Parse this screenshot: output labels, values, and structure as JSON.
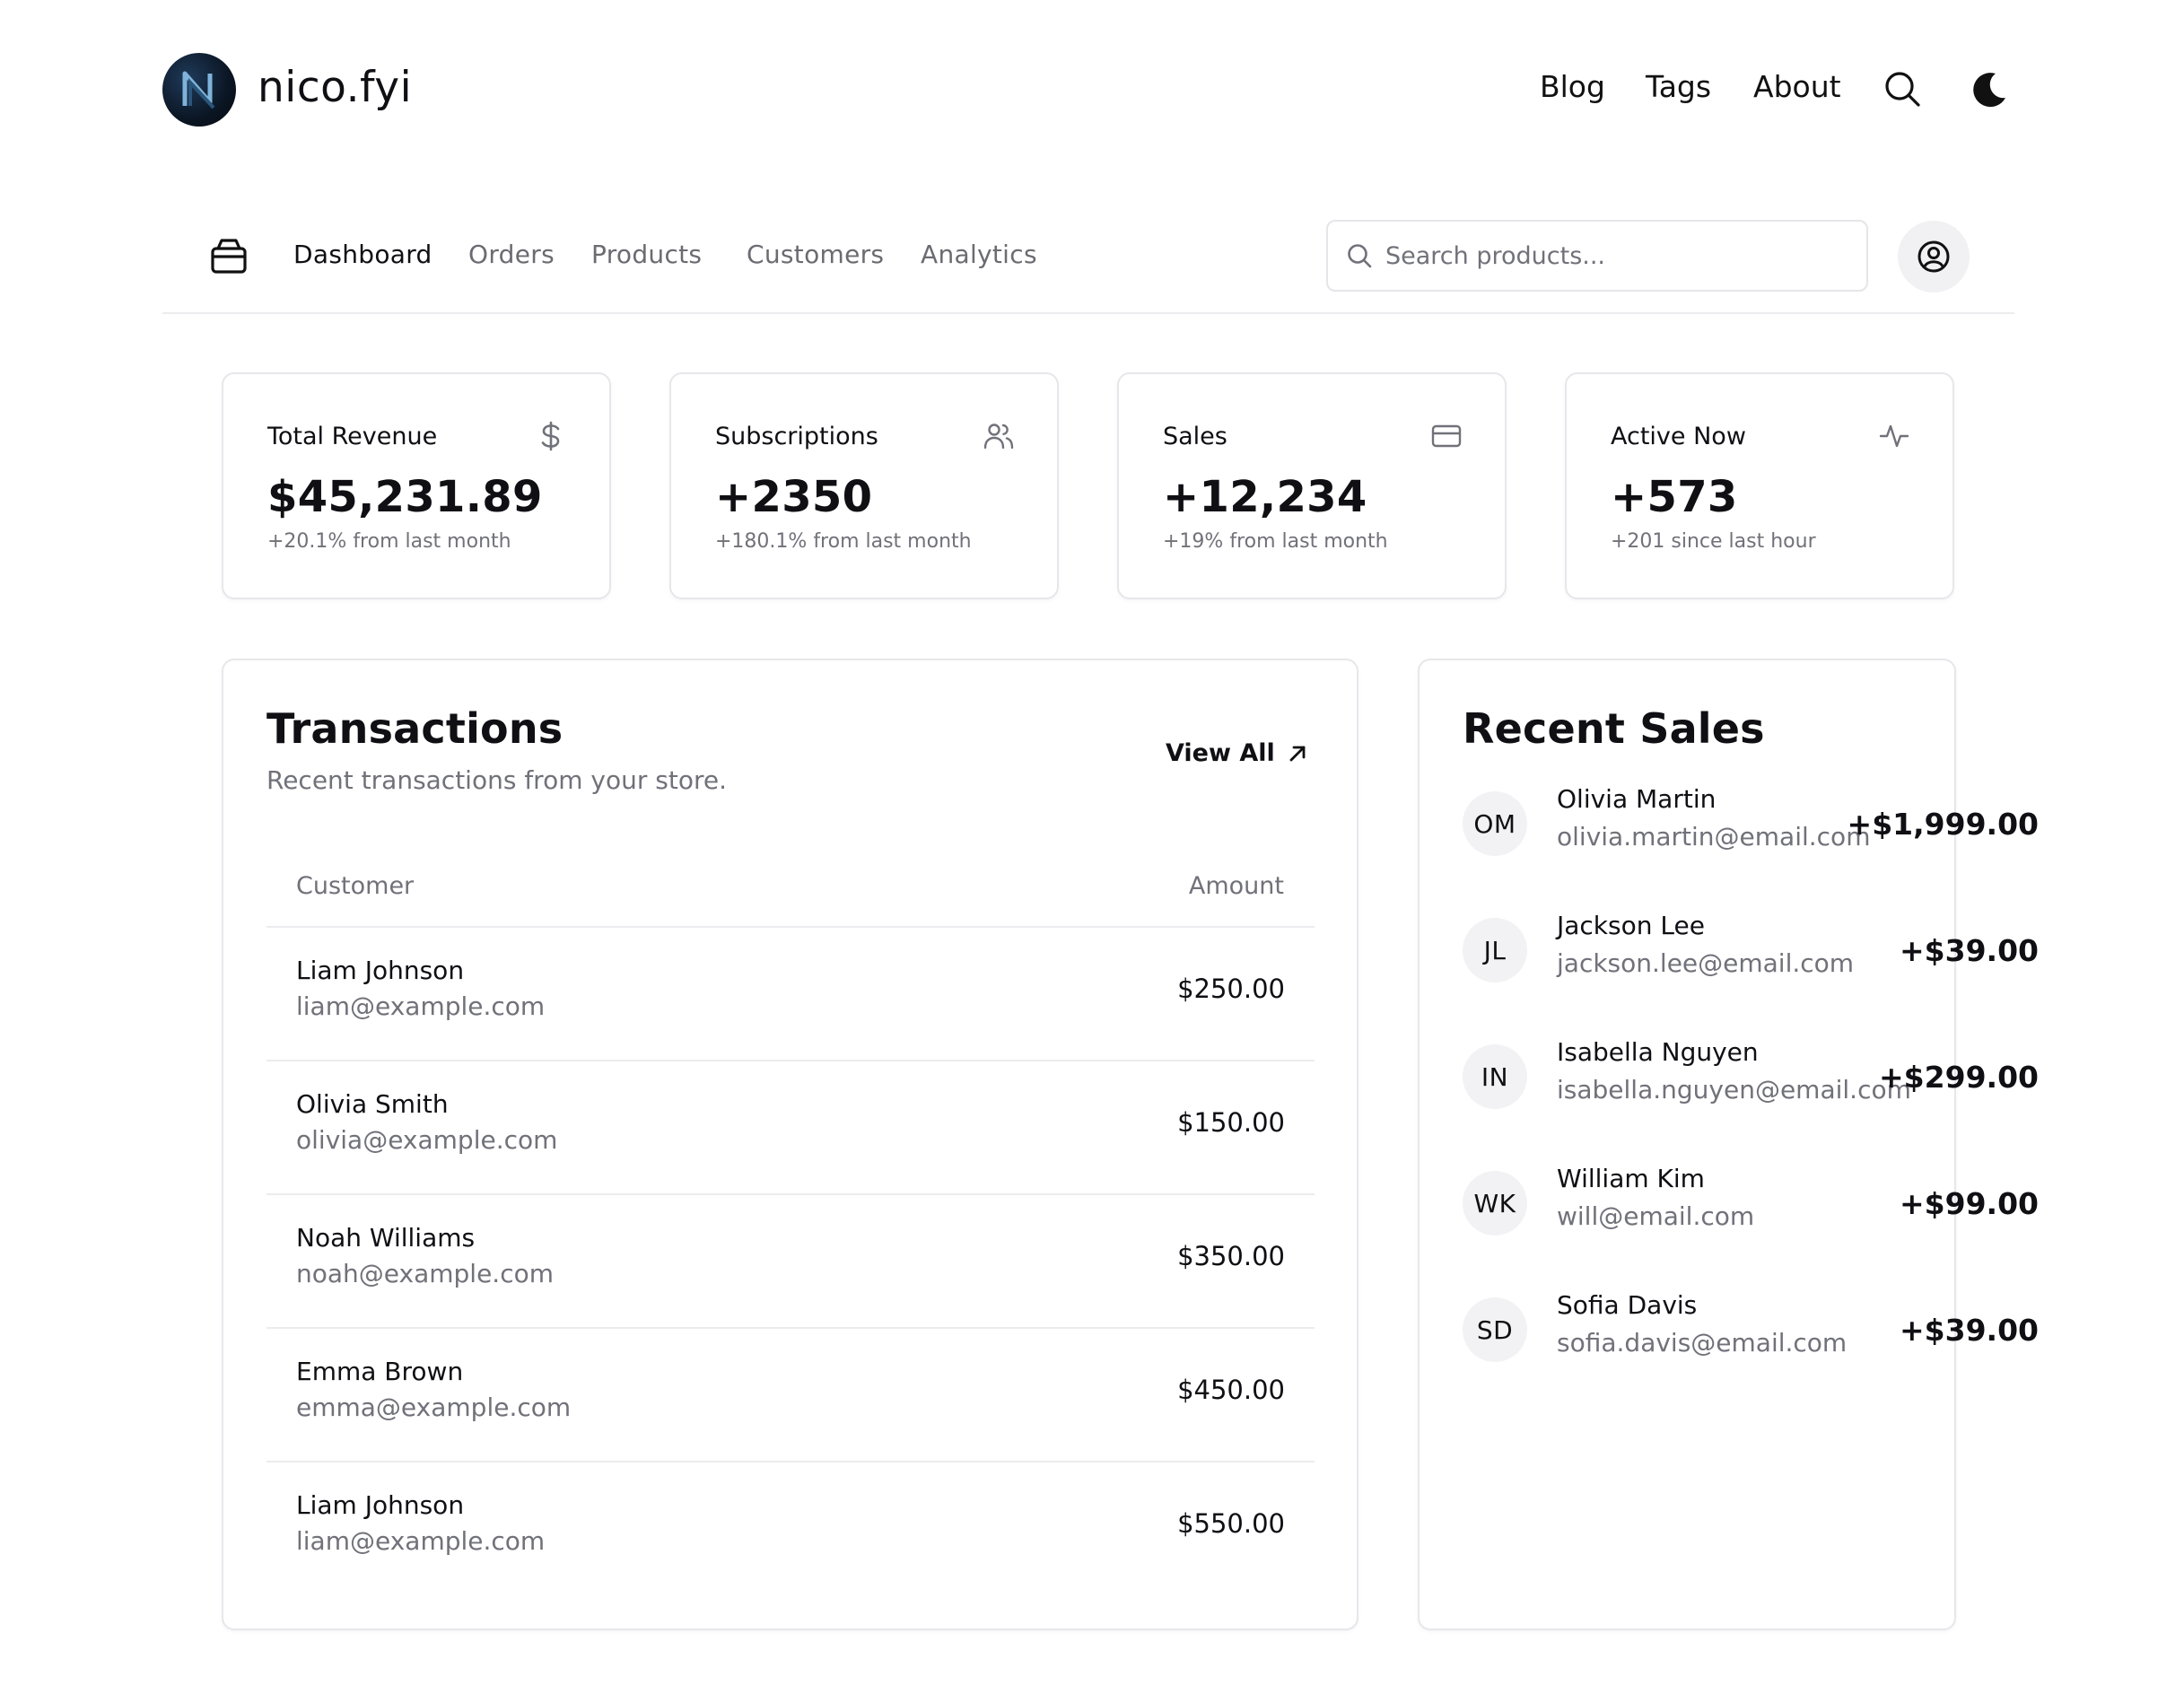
{
  "site": {
    "brand": "nico.fyi",
    "nav": [
      "Blog",
      "Tags",
      "About"
    ]
  },
  "app_nav": {
    "items": [
      "Dashboard",
      "Orders",
      "Products",
      "Customers",
      "Analytics"
    ],
    "active": "Dashboard",
    "search_placeholder": "Search products..."
  },
  "stats": [
    {
      "title": "Total Revenue",
      "value": "$45,231.89",
      "delta": "+20.1% from last month",
      "icon": "dollar-icon"
    },
    {
      "title": "Subscriptions",
      "value": "+2350",
      "delta": "+180.1% from last month",
      "icon": "users-icon"
    },
    {
      "title": "Sales",
      "value": "+12,234",
      "delta": "+19% from last month",
      "icon": "credit-card-icon"
    },
    {
      "title": "Active Now",
      "value": "+573",
      "delta": "+201 since last hour",
      "icon": "activity-icon"
    }
  ],
  "transactions": {
    "title": "Transactions",
    "subtitle": "Recent transactions from your store.",
    "view_all": "View All",
    "columns": [
      "Customer",
      "Amount"
    ],
    "rows": [
      {
        "name": "Liam Johnson",
        "email": "liam@example.com",
        "amount": "$250.00"
      },
      {
        "name": "Olivia Smith",
        "email": "olivia@example.com",
        "amount": "$150.00"
      },
      {
        "name": "Noah Williams",
        "email": "noah@example.com",
        "amount": "$350.00"
      },
      {
        "name": "Emma Brown",
        "email": "emma@example.com",
        "amount": "$450.00"
      },
      {
        "name": "Liam Johnson",
        "email": "liam@example.com",
        "amount": "$550.00"
      }
    ]
  },
  "recent_sales": {
    "title": "Recent Sales",
    "rows": [
      {
        "initials": "OM",
        "name": "Olivia Martin",
        "email": "olivia.martin@email.com",
        "amount": "+$1,999.00"
      },
      {
        "initials": "JL",
        "name": "Jackson Lee",
        "email": "jackson.lee@email.com",
        "amount": "+$39.00"
      },
      {
        "initials": "IN",
        "name": "Isabella Nguyen",
        "email": "isabella.nguyen@email.com",
        "amount": "+$299.00"
      },
      {
        "initials": "WK",
        "name": "William Kim",
        "email": "will@email.com",
        "amount": "+$99.00"
      },
      {
        "initials": "SD",
        "name": "Sofia Davis",
        "email": "sofia.davis@email.com",
        "amount": "+$39.00"
      }
    ]
  }
}
